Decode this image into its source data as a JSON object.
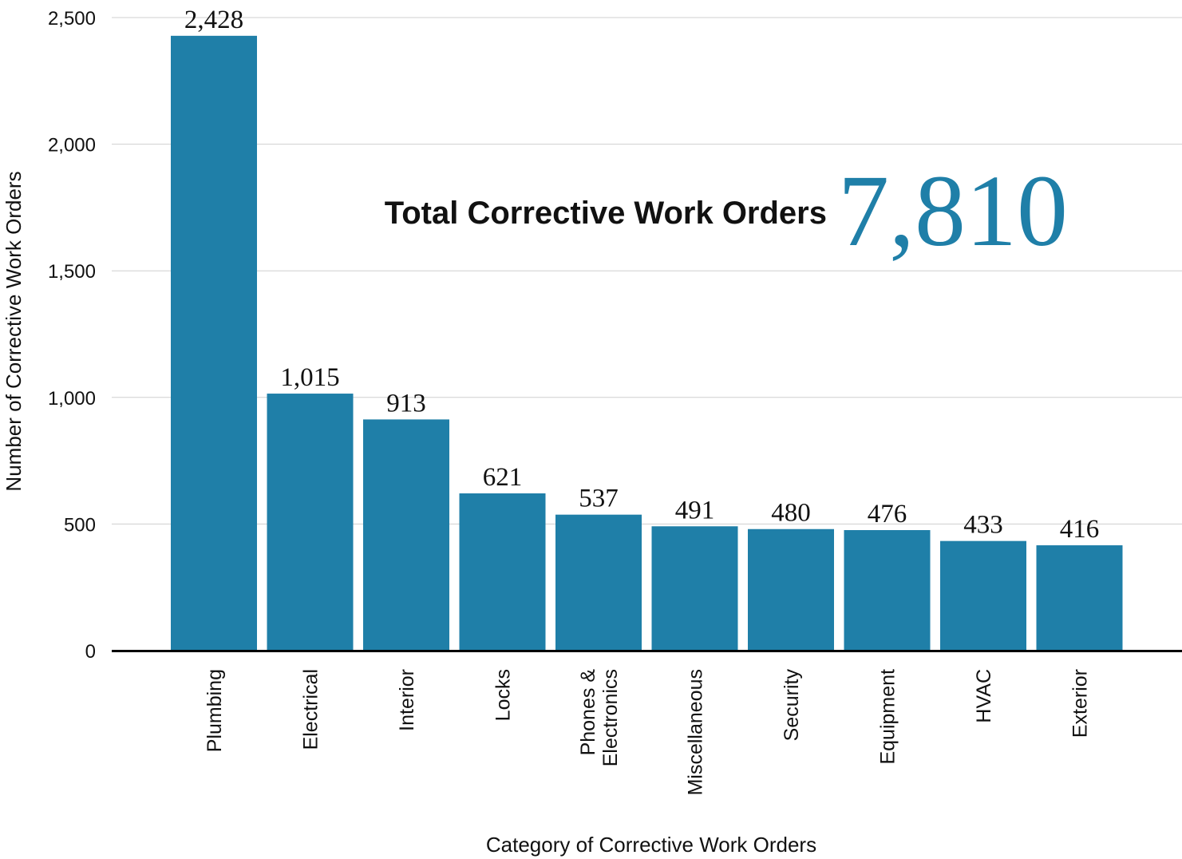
{
  "chart_data": {
    "type": "bar",
    "categories": [
      "Plumbing",
      "Electrical",
      "Interior",
      "Locks",
      "Phones & Electronics",
      "Miscellaneous",
      "Security",
      "Equipment",
      "HVAC",
      "Exterior"
    ],
    "category_lines": [
      [
        "Plumbing"
      ],
      [
        "Electrical"
      ],
      [
        "Interior"
      ],
      [
        "Locks"
      ],
      [
        "Phones &",
        "Electronics"
      ],
      [
        "Miscellaneous"
      ],
      [
        "Security"
      ],
      [
        "Equipment"
      ],
      [
        "HVAC"
      ],
      [
        "Exterior"
      ]
    ],
    "values": [
      2428,
      1015,
      913,
      621,
      537,
      491,
      480,
      476,
      433,
      416
    ],
    "value_labels": [
      "2,428",
      "1,015",
      "913",
      "621",
      "537",
      "491",
      "480",
      "476",
      "433",
      "416"
    ],
    "xlabel": "Category of Corrective Work Orders",
    "ylabel": "Number of Corrective Work Orders",
    "ylim": [
      0,
      2500
    ],
    "yticks": [
      0,
      500,
      1000,
      1500,
      2000,
      2500
    ],
    "ytick_labels": [
      "0",
      "500",
      "1,000",
      "1,500",
      "2,000",
      "2,500"
    ],
    "grid": true,
    "bar_color": "#1f7fa8",
    "annotation": {
      "label": "Total Corrective Work Orders",
      "value": "7,810",
      "value_color": "#1f7fa8"
    }
  }
}
